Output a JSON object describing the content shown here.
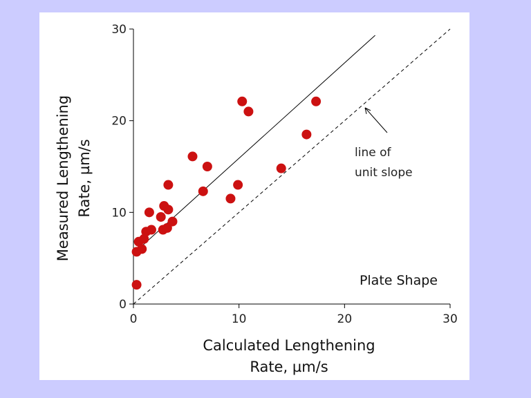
{
  "chart_data": {
    "type": "scatter",
    "xlabel_lines": [
      "Calculated Lengthening",
      "Rate, µm/s"
    ],
    "ylabel_lines": [
      "Measured Lengthening",
      "Rate, µm/s"
    ],
    "xlim": [
      0,
      30
    ],
    "ylim": [
      0,
      30
    ],
    "xticks": [
      0,
      10,
      20,
      30
    ],
    "yticks": [
      0,
      10,
      20,
      30
    ],
    "xtick_labels": [
      "0",
      "10",
      "20",
      "30"
    ],
    "ytick_labels": [
      "0",
      "10",
      "20",
      "30"
    ],
    "panel_label": "Plate Shape",
    "annotation_lines": [
      "line of",
      "unit slope"
    ],
    "point_color": "#cc1111",
    "points": [
      {
        "x": 0.3,
        "y": 2.1
      },
      {
        "x": 0.3,
        "y": 5.7
      },
      {
        "x": 0.5,
        "y": 6.8
      },
      {
        "x": 0.8,
        "y": 6.0
      },
      {
        "x": 1.0,
        "y": 7.1
      },
      {
        "x": 1.2,
        "y": 7.9
      },
      {
        "x": 1.5,
        "y": 10.0
      },
      {
        "x": 1.7,
        "y": 8.1
      },
      {
        "x": 2.6,
        "y": 9.5
      },
      {
        "x": 2.8,
        "y": 8.1
      },
      {
        "x": 2.9,
        "y": 10.7
      },
      {
        "x": 3.2,
        "y": 8.3
      },
      {
        "x": 3.3,
        "y": 10.3
      },
      {
        "x": 3.3,
        "y": 13.0
      },
      {
        "x": 3.7,
        "y": 9.0
      },
      {
        "x": 5.6,
        "y": 16.1
      },
      {
        "x": 6.6,
        "y": 12.3
      },
      {
        "x": 7.0,
        "y": 15.0
      },
      {
        "x": 9.2,
        "y": 11.5
      },
      {
        "x": 9.9,
        "y": 13.0
      },
      {
        "x": 10.3,
        "y": 22.1
      },
      {
        "x": 10.9,
        "y": 21.0
      },
      {
        "x": 14.0,
        "y": 14.8
      },
      {
        "x": 16.4,
        "y": 18.5
      },
      {
        "x": 17.3,
        "y": 22.1
      }
    ],
    "fit_line": {
      "style": "solid",
      "slope": 1.04,
      "intercept": 5.5,
      "x_range": [
        0,
        22.9
      ]
    },
    "unit_slope_line": {
      "style": "dashed",
      "slope": 1,
      "intercept": 0,
      "x_range": [
        0,
        30
      ]
    }
  }
}
